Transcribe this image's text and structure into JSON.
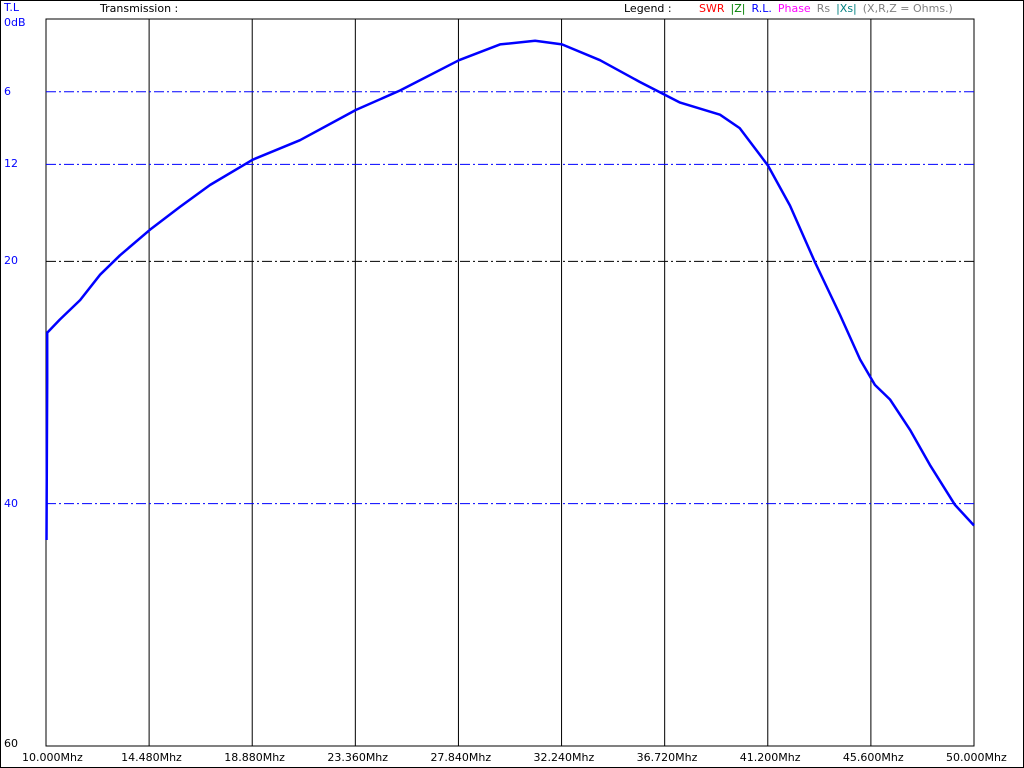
{
  "header": {
    "unit_label": "T.L",
    "title": "Transmission :",
    "legend_label": "Legend :"
  },
  "legend": [
    {
      "label": "SWR",
      "color": "#ff0000"
    },
    {
      "label": "|Z|",
      "color": "#008000"
    },
    {
      "label": "R.L.",
      "color": "#0000ff"
    },
    {
      "label": "Phase",
      "color": "#ff00ff"
    },
    {
      "label": "Rs",
      "color": "#808080"
    },
    {
      "label": "|Xs|",
      "color": "#008080"
    },
    {
      "label": "(X,R,Z = Ohms.)",
      "color": "#808080"
    }
  ],
  "chart_data": {
    "type": "line",
    "title": "Transmission :",
    "ylabel": "T.L",
    "xlim": [
      10,
      50
    ],
    "ylim": [
      0,
      60
    ],
    "y_inverted": true,
    "x_ticks": [
      "10.000Mhz",
      "14.480Mhz",
      "18.880Mhz",
      "23.360Mhz",
      "27.840Mhz",
      "32.240Mhz",
      "36.720Mhz",
      "41.200Mhz",
      "45.600Mhz",
      "50.000Mhz"
    ],
    "y_ticks": [
      {
        "value": 0,
        "label": "0dB"
      },
      {
        "value": 6,
        "label": "6"
      },
      {
        "value": 12,
        "label": "12"
      },
      {
        "value": 20,
        "label": "20"
      },
      {
        "value": 40,
        "label": "40"
      },
      {
        "value": 60,
        "label": "60"
      }
    ],
    "grid": true,
    "series": [
      {
        "color": "#0000ff",
        "x": [
          10.02,
          10.04,
          10.05,
          10.05,
          10.6,
          11.47,
          12.33,
          13.19,
          14.48,
          15.78,
          17.07,
          18.92,
          20.95,
          23.36,
          25.26,
          27.8,
          29.57,
          31.08,
          32.24,
          33.88,
          35.6,
          37.33,
          39.05,
          39.9,
          41.12,
          42.07,
          43.15,
          44.22,
          45.09,
          45.73,
          46.38,
          47.24,
          48.1,
          49.18,
          50.0
        ],
        "y": [
          43.0,
          35.0,
          29.8,
          25.9,
          24.8,
          23.2,
          21.1,
          19.5,
          17.4,
          15.5,
          13.7,
          11.6,
          10.0,
          7.5,
          5.9,
          3.4,
          2.1,
          1.8,
          2.1,
          3.4,
          5.2,
          6.9,
          7.9,
          9.0,
          12.1,
          15.4,
          20.1,
          24.4,
          28.1,
          30.2,
          31.4,
          33.9,
          36.8,
          40.1,
          41.8
        ]
      }
    ]
  }
}
